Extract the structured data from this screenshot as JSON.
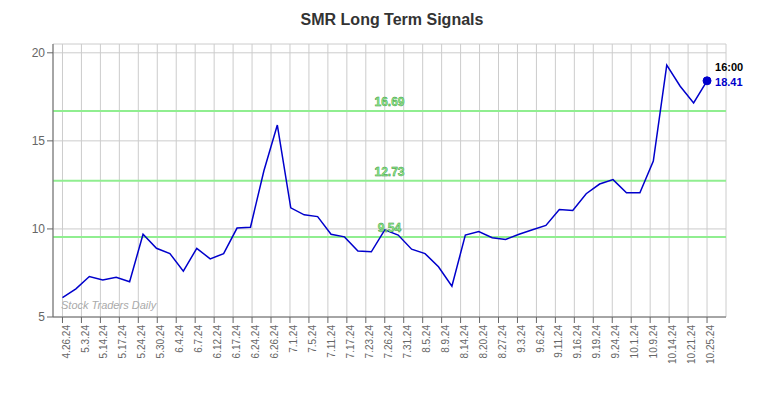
{
  "chart_data": {
    "type": "line",
    "title": "SMR Long Term Signals",
    "x": [
      0,
      0.7083333333333334,
      1.4166666666666667,
      2.125,
      2.8333333333333335,
      3.5416666666666665,
      4.25,
      4.958333333333333,
      5.666666666666667,
      6.375,
      7.083333333333333,
      7.791666666666667,
      8.5,
      9.208333333333334,
      9.916666666666666,
      10.625,
      11.333333333333334,
      12.041666666666666,
      12.75,
      13.458333333333334,
      14.166666666666666,
      14.875,
      15.583333333333334,
      16.291666666666668,
      17,
      17.708333333333332,
      18.416666666666668,
      19.125,
      19.833333333333332,
      20.541666666666668,
      21.25,
      21.958333333333332,
      22.666666666666668,
      23.375,
      24.083333333333332,
      24.791666666666668,
      25.5,
      26.208333333333332,
      26.916666666666668,
      27.625,
      28.333333333333332,
      29.041666666666668,
      29.75,
      30.458333333333332,
      31.166666666666668,
      31.875,
      32.583333333333336,
      33.291666666666664,
      34
    ],
    "values": [
      6.1,
      6.6,
      7.3,
      7.1,
      7.25,
      7.0,
      9.7,
      8.9,
      8.6,
      7.6,
      8.9,
      8.3,
      8.6,
      10.05,
      10.1,
      13.3,
      15.9,
      11.2,
      10.8,
      10.7,
      9.7,
      9.55,
      8.75,
      8.7,
      9.95,
      9.65,
      8.85,
      8.6,
      7.85,
      6.75,
      9.65,
      9.85,
      9.5,
      9.4,
      9.7,
      9.95,
      10.2,
      11.1,
      11.05,
      12.0,
      12.55,
      12.8,
      12.05,
      12.05,
      13.85,
      19.3,
      18.1,
      17.15,
      18.41
    ],
    "color": "#0000cc",
    "xlim": [
      -0.5,
      35
    ],
    "xticks": [
      {
        "value": 0,
        "label": "4.26.24"
      },
      {
        "value": 1,
        "label": "5.3.24"
      },
      {
        "value": 2,
        "label": "5.14.24"
      },
      {
        "value": 3,
        "label": "5.17.24"
      },
      {
        "value": 4,
        "label": "5.24.24"
      },
      {
        "value": 5,
        "label": "5.30.24"
      },
      {
        "value": 6,
        "label": "6.4.24"
      },
      {
        "value": 7,
        "label": "6.7.24"
      },
      {
        "value": 8,
        "label": "6.12.24"
      },
      {
        "value": 9,
        "label": "6.17.24"
      },
      {
        "value": 10,
        "label": "6.24.24"
      },
      {
        "value": 11,
        "label": "6.26.24"
      },
      {
        "value": 12,
        "label": "7.1.24"
      },
      {
        "value": 13,
        "label": "7.5.24"
      },
      {
        "value": 14,
        "label": "7.11.24"
      },
      {
        "value": 15,
        "label": "7.17.24"
      },
      {
        "value": 16,
        "label": "7.23.24"
      },
      {
        "value": 17,
        "label": "7.26.24"
      },
      {
        "value": 18,
        "label": "7.31.24"
      },
      {
        "value": 19,
        "label": "8.5.24"
      },
      {
        "value": 20,
        "label": "8.9.24"
      },
      {
        "value": 21,
        "label": "8.14.24"
      },
      {
        "value": 22,
        "label": "8.20.24"
      },
      {
        "value": 23,
        "label": "8.27.24"
      },
      {
        "value": 24,
        "label": "9.3.24"
      },
      {
        "value": 25,
        "label": "9.6.24"
      },
      {
        "value": 26,
        "label": "9.11.24"
      },
      {
        "value": 27,
        "label": "9.16.24"
      },
      {
        "value": 28,
        "label": "9.19.24"
      },
      {
        "value": 29,
        "label": "9.24.24"
      },
      {
        "value": 30,
        "label": "10.1.24"
      },
      {
        "value": 31,
        "label": "10.9.24"
      },
      {
        "value": 32,
        "label": "10.14.24"
      },
      {
        "value": 33,
        "label": "10.21.24"
      },
      {
        "value": 34,
        "label": "10.25.24"
      }
    ],
    "ylim": [
      5,
      20.5
    ],
    "yticks": [
      5,
      10,
      15,
      20
    ],
    "grid": true,
    "hlines": [
      {
        "y": 9.54,
        "label": "9.54",
        "color": "#90ee90"
      },
      {
        "y": 12.73,
        "label": "12.73",
        "color": "#90ee90"
      },
      {
        "y": 16.69,
        "label": "16.69",
        "color": "#90ee90"
      }
    ],
    "last_point": {
      "x": 34,
      "y": 18.41,
      "time": "16:00",
      "label": "18.41",
      "color": "#0000cc"
    },
    "watermark": "Stock Traders Daily"
  }
}
